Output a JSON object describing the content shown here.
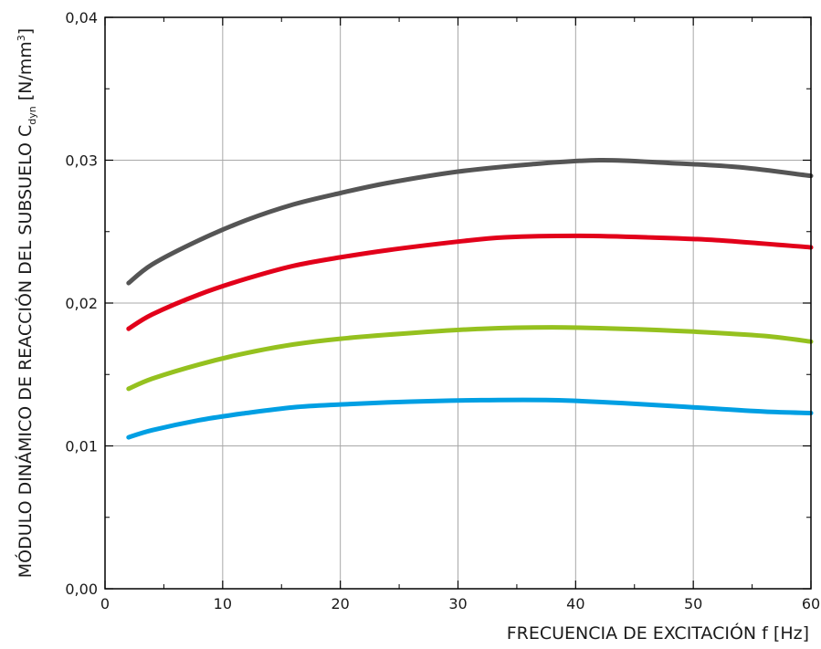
{
  "chart_data": {
    "type": "line",
    "xlabel": "FRECUENCIA DE EXCITACIÓN f [Hz]",
    "ylabel": {
      "main": "MÓDULO DINÁMICO DE REACCIÓN DEL SUBSUELO C",
      "subscript": "dyn",
      "unit_open": " [N/mm",
      "unit_sup": "3",
      "unit_close": "]"
    },
    "xlim": [
      0,
      60
    ],
    "ylim": [
      0,
      0.04
    ],
    "xticks": [
      0,
      10,
      20,
      30,
      40,
      50,
      60
    ],
    "xtick_labels": [
      "0",
      "10",
      "20",
      "30",
      "40",
      "50",
      "60"
    ],
    "yticks": [
      0,
      0.01,
      0.02,
      0.03,
      0.04
    ],
    "ytick_labels": [
      "0,00",
      "0,01",
      "0,02",
      "0,03",
      "0,04"
    ],
    "grid": true,
    "series": [
      {
        "color": "#555555",
        "x": [
          2,
          4,
          8,
          12,
          16,
          20,
          24,
          30,
          36,
          42,
          48,
          54,
          60
        ],
        "y": [
          0.0214,
          0.0227,
          0.0244,
          0.0258,
          0.0269,
          0.0277,
          0.0284,
          0.0292,
          0.0297,
          0.03,
          0.0298,
          0.0295,
          0.0289
        ]
      },
      {
        "color": "#e2001a",
        "x": [
          2,
          4,
          8,
          12,
          16,
          20,
          24,
          30,
          34,
          40,
          46,
          52,
          60
        ],
        "y": [
          0.0182,
          0.0192,
          0.0206,
          0.0217,
          0.0226,
          0.0232,
          0.0237,
          0.0243,
          0.0246,
          0.0247,
          0.0246,
          0.0244,
          0.0239
        ]
      },
      {
        "color": "#95c11f",
        "x": [
          2,
          4,
          8,
          12,
          16,
          20,
          26,
          32,
          38,
          44,
          50,
          56,
          60
        ],
        "y": [
          0.014,
          0.0147,
          0.0157,
          0.0165,
          0.0171,
          0.0175,
          0.0179,
          0.0182,
          0.0183,
          0.0182,
          0.018,
          0.0177,
          0.0173
        ]
      },
      {
        "color": "#009fe3",
        "x": [
          2,
          4,
          8,
          12,
          16,
          20,
          26,
          32,
          38,
          44,
          50,
          56,
          60
        ],
        "y": [
          0.0106,
          0.0111,
          0.0118,
          0.0123,
          0.0127,
          0.0129,
          0.0131,
          0.0132,
          0.0132,
          0.013,
          0.0127,
          0.0124,
          0.0123
        ]
      }
    ]
  }
}
